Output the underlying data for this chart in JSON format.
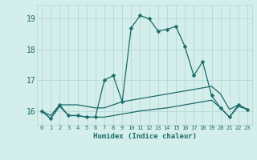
{
  "title": "",
  "xlabel": "Humidex (Indice chaleur)",
  "background_color": "#d4eeeb",
  "grid_color": "#b8d8d4",
  "line_color": "#1a6b6b",
  "x_ticks": [
    0,
    1,
    2,
    3,
    4,
    5,
    6,
    7,
    8,
    9,
    10,
    11,
    12,
    13,
    14,
    15,
    16,
    17,
    18,
    19,
    20,
    21,
    22,
    23
  ],
  "y_ticks": [
    16,
    17,
    18,
    19
  ],
  "xlim": [
    -0.5,
    23.5
  ],
  "ylim": [
    15.55,
    19.45
  ],
  "line1_x": [
    0,
    1,
    2,
    3,
    4,
    5,
    6,
    7,
    8,
    9,
    10,
    11,
    12,
    13,
    14,
    15,
    16,
    17,
    18,
    19,
    20,
    21,
    22,
    23
  ],
  "line1_y": [
    16.0,
    15.75,
    16.2,
    15.85,
    15.85,
    15.8,
    15.8,
    17.0,
    17.15,
    16.3,
    18.7,
    19.1,
    19.0,
    18.6,
    18.65,
    18.75,
    18.1,
    17.15,
    17.6,
    16.5,
    16.1,
    15.8,
    16.2,
    16.05
  ],
  "line2_x": [
    0,
    1,
    2,
    3,
    4,
    5,
    6,
    7,
    8,
    9,
    10,
    11,
    12,
    13,
    14,
    15,
    16,
    17,
    18,
    19,
    20,
    21,
    22,
    23
  ],
  "line2_y": [
    16.0,
    15.85,
    16.2,
    16.2,
    16.2,
    16.15,
    16.1,
    16.1,
    16.2,
    16.3,
    16.35,
    16.4,
    16.45,
    16.5,
    16.55,
    16.6,
    16.65,
    16.7,
    16.75,
    16.8,
    16.55,
    16.05,
    16.2,
    16.05
  ],
  "line3_x": [
    0,
    1,
    2,
    3,
    4,
    5,
    6,
    7,
    8,
    9,
    10,
    11,
    12,
    13,
    14,
    15,
    16,
    17,
    18,
    19,
    20,
    21,
    22,
    23
  ],
  "line3_y": [
    16.0,
    15.75,
    16.15,
    15.85,
    15.85,
    15.8,
    15.8,
    15.8,
    15.85,
    15.9,
    15.95,
    16.0,
    16.03,
    16.07,
    16.1,
    16.15,
    16.2,
    16.25,
    16.3,
    16.35,
    16.1,
    15.8,
    16.15,
    16.05
  ]
}
